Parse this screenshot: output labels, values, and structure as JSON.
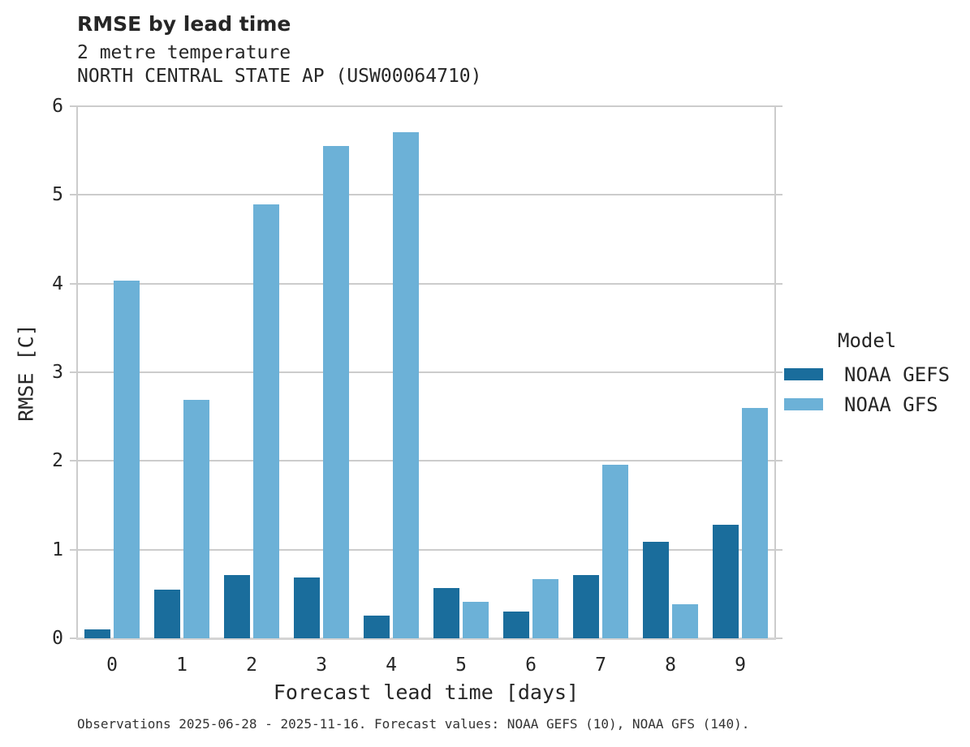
{
  "header": {
    "title": "RMSE by lead time",
    "subtitle1": "2 metre temperature",
    "subtitle2": "NORTH CENTRAL STATE AP (USW00064710)"
  },
  "chart_data": {
    "type": "bar",
    "title": "RMSE by lead time",
    "subtitle": "2 metre temperature — NORTH CENTRAL STATE AP (USW00064710)",
    "categories": [
      "0",
      "1",
      "2",
      "3",
      "4",
      "5",
      "6",
      "7",
      "8",
      "9"
    ],
    "series": [
      {
        "name": "NOAA GEFS",
        "color": "#1a6d9c",
        "values": [
          0.1,
          0.55,
          0.71,
          0.69,
          0.26,
          0.57,
          0.3,
          0.71,
          1.09,
          1.28
        ]
      },
      {
        "name": "NOAA GFS",
        "color": "#6cb1d7",
        "values": [
          4.03,
          2.69,
          4.89,
          5.55,
          5.71,
          0.41,
          0.67,
          1.96,
          0.38,
          2.6
        ]
      }
    ],
    "xlabel": "Forecast lead time [days]",
    "ylabel": "RMSE [C]",
    "ylim": [
      0,
      6
    ],
    "yticks": [
      0,
      1,
      2,
      3,
      4,
      5,
      6
    ],
    "grid": true,
    "legend_title": "Model",
    "legend_position": "right"
  },
  "footer": {
    "note": "Observations 2025-06-28 - 2025-11-16. Forecast values: NOAA GEFS (10), NOAA GFS (140)."
  },
  "colors": {
    "grid": "#cccccc",
    "text": "#262626",
    "background": "#ffffff"
  }
}
